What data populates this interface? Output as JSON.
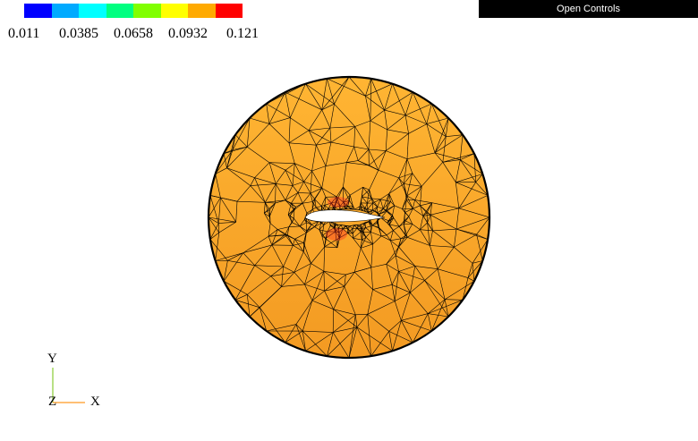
{
  "legend": {
    "colors": [
      "#0000ff",
      "#00aaff",
      "#00ffff",
      "#00ff80",
      "#80ff00",
      "#ffff00",
      "#ffaa00",
      "#ff0000"
    ],
    "labels": [
      "0.011",
      "0.0385",
      "0.0658",
      "0.0932",
      "0.121"
    ]
  },
  "controls": {
    "label": "Open Controls"
  },
  "mesh": {
    "fill_start": "#ffb533",
    "fill_end": "#f39a22",
    "edge_color": "#000000",
    "outline_color": "#000000",
    "highlight_color": "#ff2020"
  },
  "axes": {
    "y_label": "Y",
    "x_label": "X",
    "z_label": "Z",
    "y_color": "#88cc33",
    "x_color": "#ff9922"
  }
}
